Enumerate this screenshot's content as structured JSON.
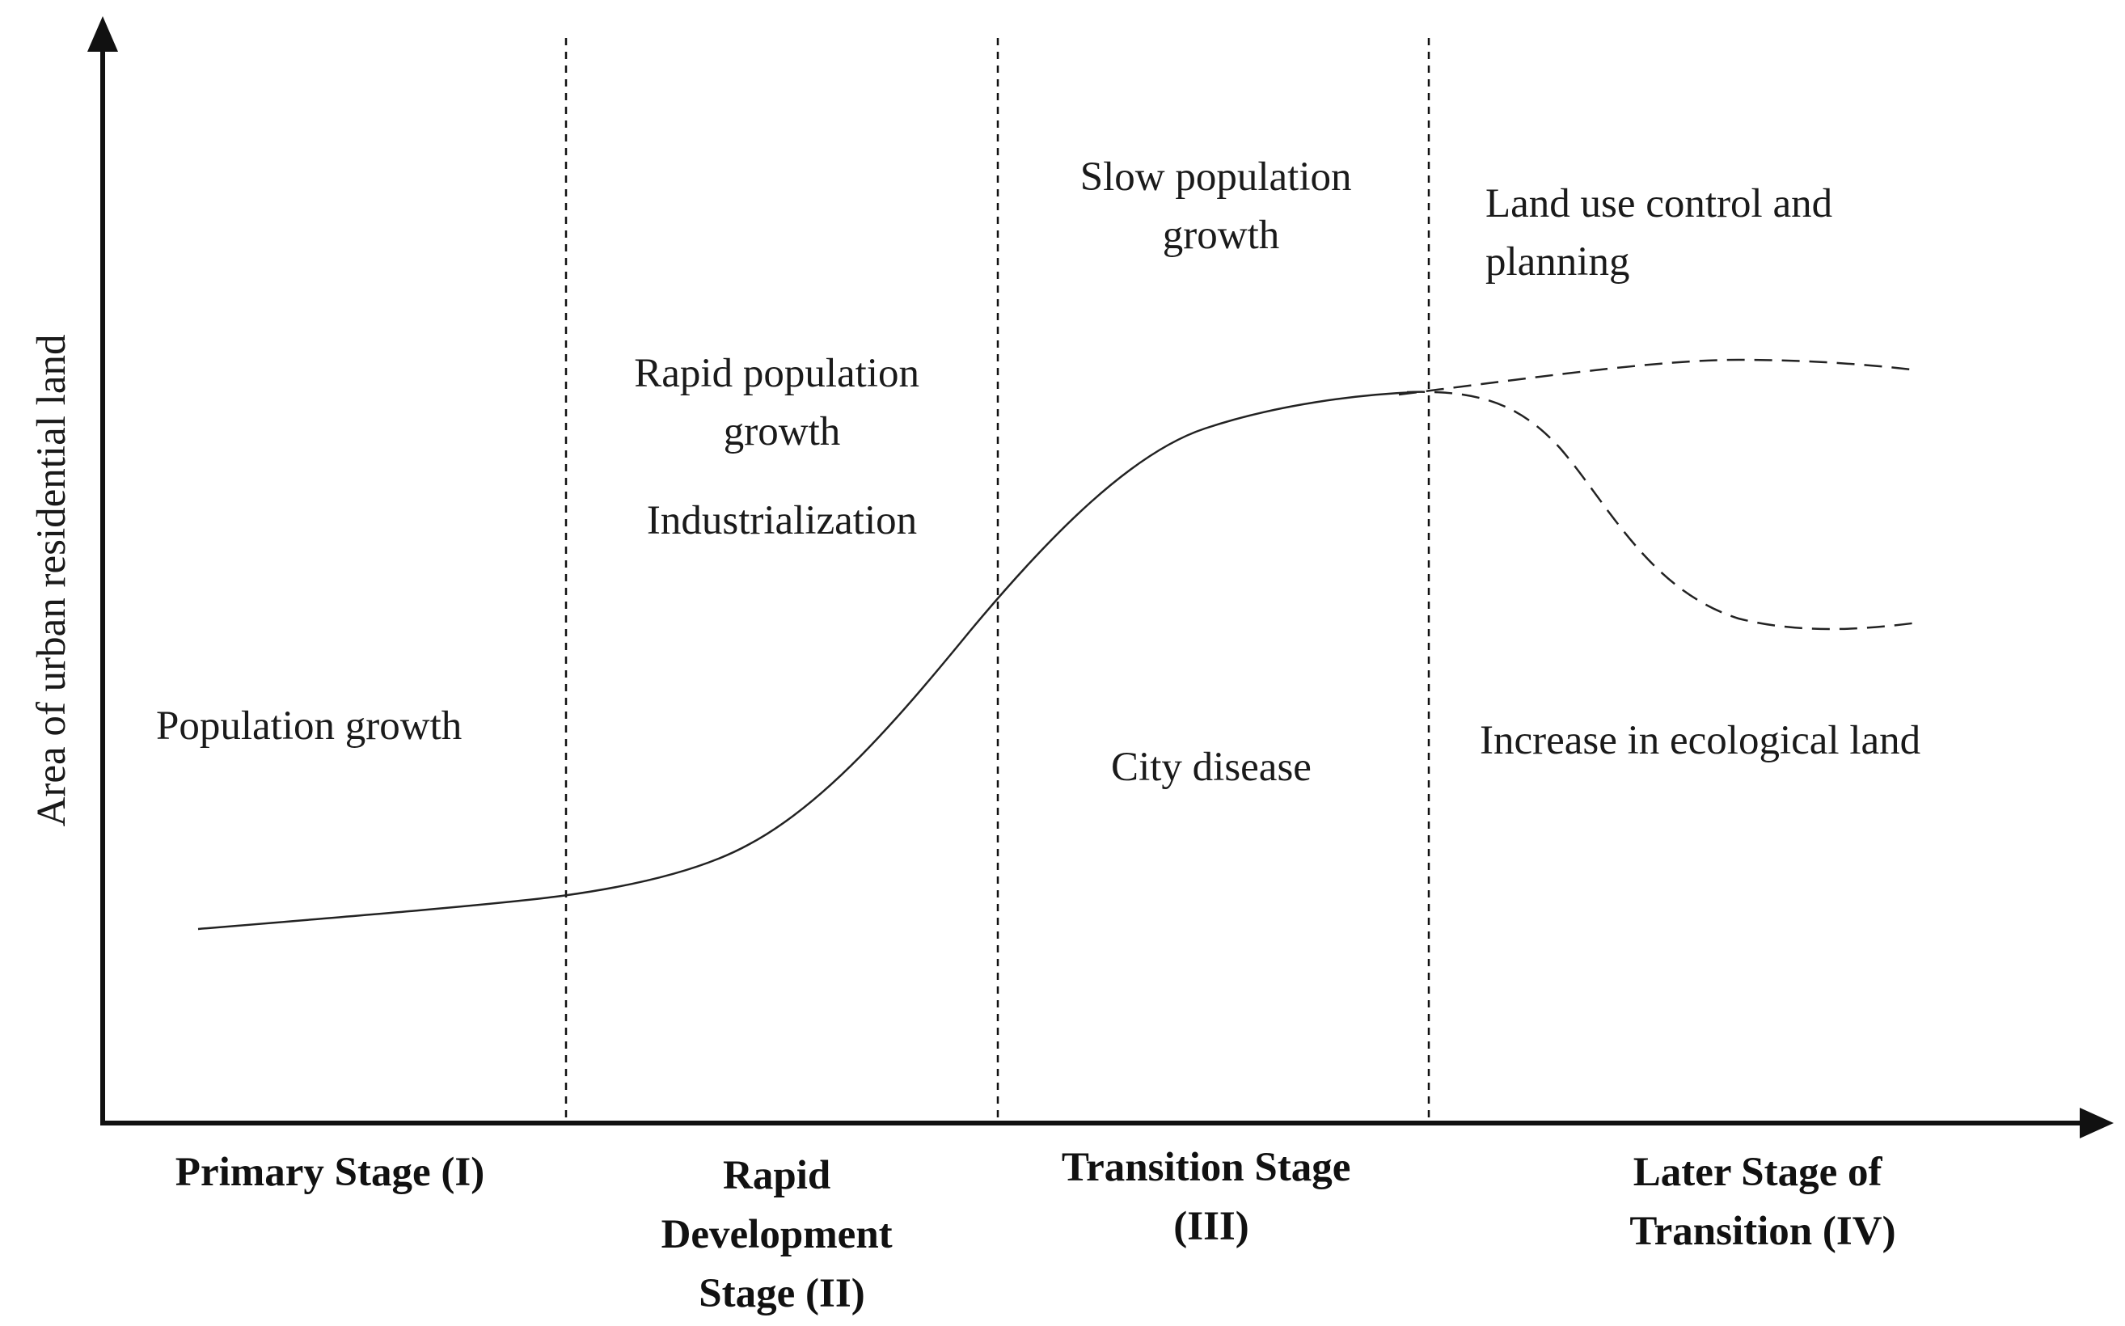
{
  "y_axis": {
    "label": "Area of  urban residential  land"
  },
  "stages": [
    {
      "lines": [
        "Primary Stage (I)"
      ]
    },
    {
      "lines": [
        "Rapid",
        "Development",
        "Stage (II)"
      ]
    },
    {
      "lines": [
        "Transition Stage",
        "(III)"
      ]
    },
    {
      "lines": [
        "Later Stage of",
        "Transition (IV)"
      ]
    }
  ],
  "annotations": {
    "population_growth": [
      "Population growth"
    ],
    "rapid_population_growth": [
      "Rapid population",
      "growth"
    ],
    "industrialization": [
      "Industrialization"
    ],
    "slow_population_growth": [
      "Slow population",
      "growth"
    ],
    "city_disease": [
      "City disease"
    ],
    "land_use_control": [
      "Land use control and",
      "planning"
    ],
    "ecological_land": [
      "Increase in ecological land"
    ]
  },
  "curves": {
    "main": {
      "style": "solid",
      "trend": "slow rise, rapid rise, plateau"
    },
    "upper_branch": {
      "style": "dashed",
      "trend": "slight increase"
    },
    "lower_branch": {
      "style": "dashed",
      "trend": "decline then stabilize"
    }
  }
}
